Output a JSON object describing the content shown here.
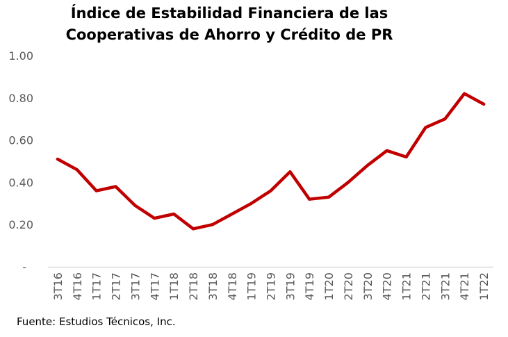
{
  "chart_data": {
    "type": "line",
    "title_lines": [
      "Índice de Estabilidad Financiera de las",
      "Cooperativas de Ahorro y Crédito de PR"
    ],
    "categories": [
      "3T16",
      "4T16",
      "1T17",
      "2T17",
      "3T17",
      "4T17",
      "1T18",
      "2T18",
      "3T18",
      "4T18",
      "1T19",
      "2T19",
      "3T19",
      "4T19",
      "1T20",
      "2T20",
      "3T20",
      "4T20",
      "1T21",
      "2T21",
      "3T21",
      "4T21",
      "1T22"
    ],
    "series": [
      {
        "values": [
          0.51,
          0.46,
          0.36,
          0.38,
          0.29,
          0.23,
          0.25,
          0.18,
          0.2,
          0.25,
          0.3,
          0.36,
          0.45,
          0.32,
          0.33,
          0.4,
          0.48,
          0.55,
          0.52,
          0.66,
          0.7,
          0.82,
          0.77
        ],
        "color": "#c00000"
      }
    ],
    "yticks": [
      "-",
      "0.20",
      "0.40",
      "0.60",
      "0.80",
      "1.00"
    ],
    "ylim": [
      0,
      1.0
    ],
    "xlabel": "",
    "ylabel": "",
    "grid": false,
    "axis_color": "#d9d9d9"
  },
  "source": "Fuente: Estudios Técnicos, Inc."
}
